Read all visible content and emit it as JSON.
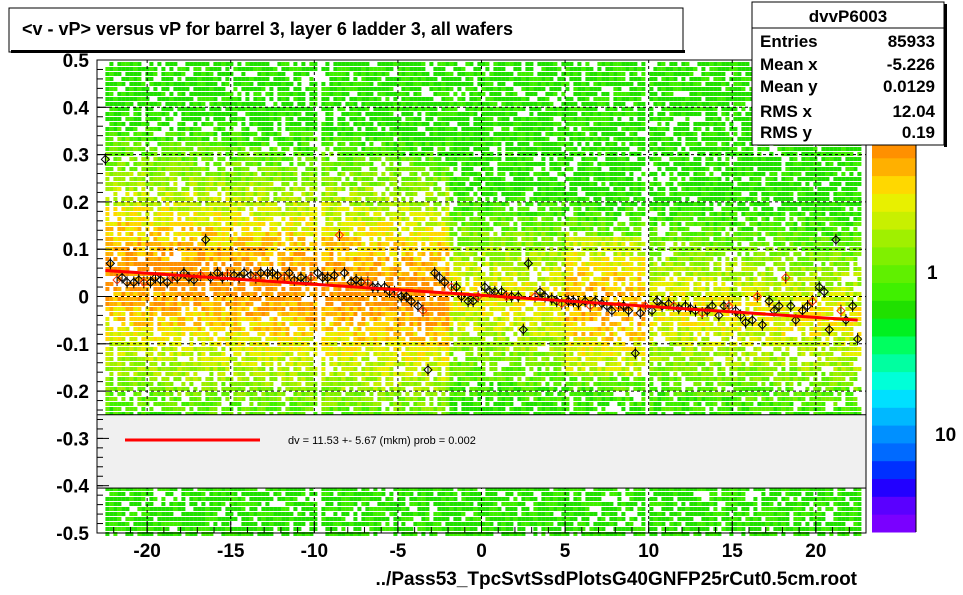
{
  "chart_data": {
    "type": "scatter",
    "title": "<v - vP>       versus   vP for barrel 3, layer 6 ladder 3, all wafers",
    "xlabel": "../Pass53_TpcSvtSsdPlotsG40GNFP25rCut0.5cm.root",
    "ylabel": "",
    "xlim": [
      -23,
      23
    ],
    "ylim": [
      -0.5,
      0.5
    ],
    "x_ticks": [
      -20,
      -15,
      -10,
      -5,
      0,
      5,
      10,
      15,
      20
    ],
    "y_ticks": [
      -0.5,
      -0.4,
      -0.3,
      -0.2,
      -0.1,
      0,
      0.1,
      0.2,
      0.3,
      0.4,
      0.5
    ],
    "grid": true,
    "stats_box": {
      "title": "dvvP6003",
      "rows": [
        {
          "label": "Entries",
          "value": "85933"
        },
        {
          "label": "Mean x",
          "value": "-5.226"
        },
        {
          "label": "Mean y",
          "value": "0.0129"
        },
        {
          "label": "RMS x",
          "value": "12.04"
        },
        {
          "label": "RMS y",
          "value": "0.19"
        }
      ]
    },
    "fit_legend": "dv =   11.53 +-  5.67 (mkm) prob = 0.002",
    "fit_line": {
      "x": [
        -22.5,
        22.5
      ],
      "y": [
        0.055,
        -0.05
      ],
      "color": "#ff0000"
    },
    "color_scale": {
      "labels": [
        "1",
        "10"
      ],
      "colors": [
        "#7a00ff",
        "#5a00ff",
        "#2200ff",
        "#0030ff",
        "#006aff",
        "#0090ff",
        "#00b8ff",
        "#00e0ff",
        "#00ffd8",
        "#00ffa0",
        "#00ff60",
        "#00f020",
        "#20e000",
        "#40f000",
        "#60f000",
        "#80f000",
        "#a0f000",
        "#c8f000",
        "#e8f000",
        "#ffd800",
        "#ffb000",
        "#ff9000"
      ]
    },
    "points": {
      "x": [
        -22.5,
        -22.2,
        -21.8,
        -21.5,
        -21.2,
        -20.8,
        -20.5,
        -20.2,
        -19.8,
        -19.5,
        -19.2,
        -18.8,
        -18.5,
        -18.2,
        -17.8,
        -17.5,
        -17.2,
        -16.8,
        -16.5,
        -16.2,
        -15.8,
        -15.5,
        -15.2,
        -14.8,
        -14.5,
        -14.2,
        -13.8,
        -13.5,
        -13.2,
        -12.8,
        -12.5,
        -12.2,
        -11.8,
        -11.5,
        -11.2,
        -10.8,
        -10.5,
        -10.2,
        -9.8,
        -9.5,
        -9.2,
        -8.8,
        -8.5,
        -8.2,
        -7.8,
        -7.5,
        -7.2,
        -6.8,
        -6.5,
        -6.2,
        -5.8,
        -5.5,
        -5.2,
        -4.8,
        -4.5,
        -4.2,
        -3.8,
        -3.5,
        -3.2,
        -2.8,
        -2.5,
        -2.2,
        -1.8,
        -1.5,
        -1.2,
        -0.8,
        -0.5,
        -0.2,
        0.2,
        0.5,
        0.8,
        1.2,
        1.5,
        1.8,
        2.2,
        2.5,
        2.8,
        3.2,
        3.5,
        3.8,
        4.2,
        4.5,
        4.8,
        5.2,
        5.5,
        5.8,
        6.2,
        6.5,
        6.8,
        7.2,
        7.5,
        7.8,
        8.2,
        8.5,
        8.8,
        9.2,
        9.5,
        9.8,
        10.2,
        10.5,
        10.8,
        11.2,
        11.5,
        11.8,
        12.2,
        12.5,
        12.8,
        13.2,
        13.5,
        13.8,
        14.2,
        14.5,
        14.8,
        15.2,
        15.5,
        15.8,
        16.2,
        16.5,
        16.8,
        17.2,
        17.5,
        17.8,
        18.2,
        18.5,
        18.8,
        19.2,
        19.5,
        19.8,
        20.2,
        20.5,
        20.8,
        21.2,
        21.5,
        21.8,
        22.2,
        22.5
      ],
      "y": [
        0.29,
        0.07,
        0.035,
        0.04,
        0.03,
        0.03,
        0.035,
        0.03,
        0.03,
        0.04,
        0.035,
        0.03,
        0.04,
        0.04,
        0.05,
        0.04,
        0.035,
        0.045,
        0.12,
        0.04,
        0.05,
        0.04,
        0.045,
        0.045,
        0.04,
        0.05,
        0.045,
        0.04,
        0.05,
        0.05,
        0.05,
        0.045,
        0.04,
        0.05,
        0.035,
        0.04,
        0.035,
        0.04,
        0.05,
        0.04,
        0.04,
        0.045,
        0.13,
        0.05,
        0.03,
        0.035,
        0.03,
        0.03,
        0.02,
        0.02,
        0.02,
        0.01,
        0.01,
        0.0,
        0.0,
        -0.01,
        -0.02,
        -0.03,
        -0.155,
        0.05,
        0.04,
        0.03,
        0.02,
        0.02,
        0.0,
        -0.01,
        -0.01,
        0.0,
        0.02,
        0.01,
        0.01,
        0.01,
        0.0,
        0.0,
        0.0,
        -0.07,
        0.07,
        0.0,
        0.01,
        0.0,
        -0.005,
        -0.01,
        -0.015,
        -0.01,
        -0.01,
        -0.015,
        -0.01,
        -0.02,
        -0.01,
        -0.015,
        -0.02,
        -0.03,
        -0.02,
        -0.02,
        -0.03,
        -0.12,
        -0.035,
        -0.02,
        -0.03,
        -0.01,
        -0.02,
        -0.015,
        -0.02,
        -0.025,
        -0.02,
        -0.025,
        -0.03,
        -0.035,
        -0.03,
        -0.02,
        -0.04,
        -0.02,
        -0.02,
        -0.03,
        -0.04,
        -0.055,
        -0.05,
        0.0,
        -0.06,
        -0.01,
        -0.03,
        -0.02,
        0.04,
        -0.02,
        -0.05,
        -0.03,
        -0.02,
        -0.01,
        0.02,
        0.01,
        -0.07,
        0.12,
        -0.03,
        -0.05,
        -0.02,
        -0.09
      ]
    }
  }
}
